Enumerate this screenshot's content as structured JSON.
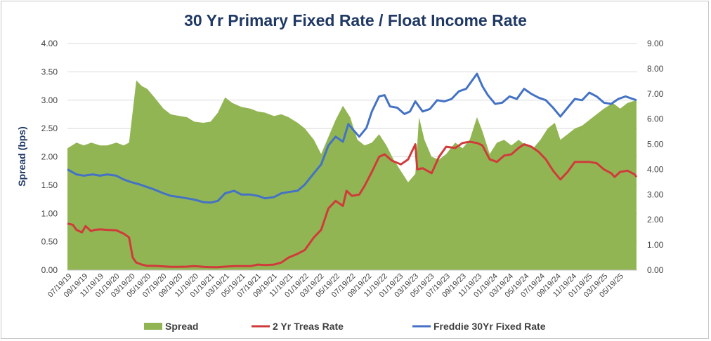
{
  "chart_data": {
    "type": "area",
    "title": "30 Yr Primary Fixed Rate / Float Income Rate",
    "ylabel": "Spread (bps)",
    "ylabel_right": "",
    "ylim": [
      0,
      4
    ],
    "ylim_right": [
      0,
      9
    ],
    "y_ticks": [
      "0.00",
      "0.50",
      "1.00",
      "1.50",
      "2.00",
      "2.50",
      "3.00",
      "3.50",
      "4.00"
    ],
    "y_ticks_right": [
      "0.00",
      "1.00",
      "2.00",
      "3.00",
      "4.00",
      "5.00",
      "6.00",
      "7.00",
      "8.00",
      "9.00"
    ],
    "x_range": [
      "2019-07-01",
      "2025-07-10"
    ],
    "x_ticks": [
      "07/19/19",
      "09/19/19",
      "11/19/19",
      "01/19/20",
      "03/19/20",
      "05/19/20",
      "07/19/20",
      "09/19/20",
      "11/19/20",
      "01/19/21",
      "03/19/21",
      "05/19/21",
      "07/19/21",
      "09/19/21",
      "11/19/21",
      "01/19/22",
      "03/19/22",
      "05/19/22",
      "07/19/22",
      "09/19/22",
      "11/19/22",
      "01/19/23",
      "03/19/23",
      "05/19/23",
      "07/19/23",
      "09/19/23",
      "11/19/23",
      "01/19/24",
      "03/19/24",
      "05/19/24",
      "07/19/24",
      "09/19/24",
      "11/19/24",
      "01/19/25",
      "03/19/25",
      "05/19/25"
    ],
    "grid": true,
    "legend_position": "bottom",
    "series": [
      {
        "name": "Spread",
        "type": "area",
        "axis": "left",
        "color": "#92b553",
        "points": [
          [
            "2019-07-01",
            2.15
          ],
          [
            "2019-08-05",
            2.25
          ],
          [
            "2019-09-02",
            2.2
          ],
          [
            "2019-10-01",
            2.25
          ],
          [
            "2019-11-04",
            2.2
          ],
          [
            "2019-12-02",
            2.2
          ],
          [
            "2020-01-06",
            2.25
          ],
          [
            "2020-02-03",
            2.2
          ],
          [
            "2020-02-24",
            2.25
          ],
          [
            "2020-03-09",
            2.8
          ],
          [
            "2020-03-23",
            3.35
          ],
          [
            "2020-04-13",
            3.25
          ],
          [
            "2020-05-04",
            3.2
          ],
          [
            "2020-06-01",
            3.05
          ],
          [
            "2020-07-06",
            2.85
          ],
          [
            "2020-08-03",
            2.75
          ],
          [
            "2020-09-07",
            2.72
          ],
          [
            "2020-10-05",
            2.7
          ],
          [
            "2020-11-02",
            2.62
          ],
          [
            "2020-12-07",
            2.6
          ],
          [
            "2021-01-04",
            2.62
          ],
          [
            "2021-02-01",
            2.78
          ],
          [
            "2021-03-01",
            3.05
          ],
          [
            "2021-03-29",
            2.95
          ],
          [
            "2021-05-03",
            2.88
          ],
          [
            "2021-06-07",
            2.85
          ],
          [
            "2021-07-05",
            2.8
          ],
          [
            "2021-08-02",
            2.78
          ],
          [
            "2021-09-06",
            2.72
          ],
          [
            "2021-10-04",
            2.75
          ],
          [
            "2021-11-01",
            2.7
          ],
          [
            "2021-12-06",
            2.6
          ],
          [
            "2022-01-03",
            2.5
          ],
          [
            "2022-02-07",
            2.3
          ],
          [
            "2022-03-07",
            2.05
          ],
          [
            "2022-04-04",
            2.35
          ],
          [
            "2022-05-02",
            2.65
          ],
          [
            "2022-05-30",
            2.9
          ],
          [
            "2022-06-27",
            2.7
          ],
          [
            "2022-07-25",
            2.3
          ],
          [
            "2022-08-22",
            2.2
          ],
          [
            "2022-09-19",
            2.25
          ],
          [
            "2022-10-17",
            2.4
          ],
          [
            "2022-11-14",
            2.2
          ],
          [
            "2022-12-12",
            1.95
          ],
          [
            "2023-01-09",
            1.75
          ],
          [
            "2023-02-06",
            1.55
          ],
          [
            "2023-03-06",
            1.7
          ],
          [
            "2023-03-20",
            2.7
          ],
          [
            "2023-04-10",
            2.3
          ],
          [
            "2023-05-08",
            2.0
          ],
          [
            "2023-06-05",
            1.95
          ],
          [
            "2023-07-03",
            2.05
          ],
          [
            "2023-08-07",
            2.25
          ],
          [
            "2023-09-04",
            2.15
          ],
          [
            "2023-10-02",
            2.3
          ],
          [
            "2023-10-30",
            2.7
          ],
          [
            "2023-11-20",
            2.45
          ],
          [
            "2023-12-18",
            2.05
          ],
          [
            "2024-01-15",
            2.25
          ],
          [
            "2024-02-12",
            2.3
          ],
          [
            "2024-03-11",
            2.2
          ],
          [
            "2024-04-08",
            2.3
          ],
          [
            "2024-05-06",
            2.2
          ],
          [
            "2024-06-03",
            2.15
          ],
          [
            "2024-07-01",
            2.3
          ],
          [
            "2024-07-29",
            2.5
          ],
          [
            "2024-08-26",
            2.6
          ],
          [
            "2024-09-16",
            2.3
          ],
          [
            "2024-10-14",
            2.4
          ],
          [
            "2024-11-11",
            2.5
          ],
          [
            "2024-12-09",
            2.55
          ],
          [
            "2025-01-06",
            2.65
          ],
          [
            "2025-02-03",
            2.75
          ],
          [
            "2025-03-03",
            2.85
          ],
          [
            "2025-04-07",
            2.95
          ],
          [
            "2025-05-05",
            2.85
          ],
          [
            "2025-06-02",
            2.95
          ],
          [
            "2025-07-07",
            3.0
          ]
        ]
      },
      {
        "name": "2 Yr Treas Rate",
        "type": "line",
        "axis": "right",
        "color": "#cf3b3b",
        "points": [
          [
            "2019-07-01",
            1.85
          ],
          [
            "2019-07-22",
            1.8
          ],
          [
            "2019-08-05",
            1.6
          ],
          [
            "2019-08-26",
            1.5
          ],
          [
            "2019-09-09",
            1.75
          ],
          [
            "2019-09-30",
            1.55
          ],
          [
            "2019-10-14",
            1.6
          ],
          [
            "2019-11-04",
            1.62
          ],
          [
            "2019-12-02",
            1.6
          ],
          [
            "2020-01-06",
            1.58
          ],
          [
            "2020-02-03",
            1.45
          ],
          [
            "2020-02-24",
            1.3
          ],
          [
            "2020-03-09",
            0.5
          ],
          [
            "2020-03-23",
            0.3
          ],
          [
            "2020-04-13",
            0.22
          ],
          [
            "2020-05-04",
            0.17
          ],
          [
            "2020-06-01",
            0.17
          ],
          [
            "2020-07-06",
            0.15
          ],
          [
            "2020-08-03",
            0.13
          ],
          [
            "2020-09-07",
            0.13
          ],
          [
            "2020-10-05",
            0.14
          ],
          [
            "2020-11-02",
            0.16
          ],
          [
            "2020-12-07",
            0.13
          ],
          [
            "2021-01-04",
            0.12
          ],
          [
            "2021-02-01",
            0.12
          ],
          [
            "2021-03-01",
            0.14
          ],
          [
            "2021-04-05",
            0.16
          ],
          [
            "2021-05-03",
            0.16
          ],
          [
            "2021-06-07",
            0.16
          ],
          [
            "2021-07-05",
            0.22
          ],
          [
            "2021-08-02",
            0.2
          ],
          [
            "2021-09-06",
            0.22
          ],
          [
            "2021-10-04",
            0.3
          ],
          [
            "2021-11-01",
            0.5
          ],
          [
            "2021-12-06",
            0.65
          ],
          [
            "2022-01-03",
            0.8
          ],
          [
            "2022-02-07",
            1.3
          ],
          [
            "2022-03-07",
            1.6
          ],
          [
            "2022-04-04",
            2.45
          ],
          [
            "2022-05-02",
            2.75
          ],
          [
            "2022-05-30",
            2.55
          ],
          [
            "2022-06-13",
            3.15
          ],
          [
            "2022-07-04",
            2.95
          ],
          [
            "2022-08-01",
            3.0
          ],
          [
            "2022-08-22",
            3.35
          ],
          [
            "2022-09-19",
            3.9
          ],
          [
            "2022-10-17",
            4.5
          ],
          [
            "2022-11-07",
            4.6
          ],
          [
            "2022-12-05",
            4.35
          ],
          [
            "2023-01-09",
            4.2
          ],
          [
            "2023-02-06",
            4.4
          ],
          [
            "2023-03-06",
            5.0
          ],
          [
            "2023-03-13",
            4.0
          ],
          [
            "2023-04-03",
            4.05
          ],
          [
            "2023-05-08",
            3.85
          ],
          [
            "2023-06-05",
            4.5
          ],
          [
            "2023-07-03",
            4.9
          ],
          [
            "2023-08-07",
            4.85
          ],
          [
            "2023-09-04",
            5.05
          ],
          [
            "2023-10-02",
            5.1
          ],
          [
            "2023-10-30",
            5.05
          ],
          [
            "2023-11-20",
            4.95
          ],
          [
            "2023-12-18",
            4.4
          ],
          [
            "2024-01-15",
            4.3
          ],
          [
            "2024-02-12",
            4.55
          ],
          [
            "2024-03-11",
            4.6
          ],
          [
            "2024-04-08",
            4.85
          ],
          [
            "2024-04-29",
            5.0
          ],
          [
            "2024-05-27",
            4.9
          ],
          [
            "2024-06-24",
            4.7
          ],
          [
            "2024-07-22",
            4.4
          ],
          [
            "2024-08-19",
            3.95
          ],
          [
            "2024-09-16",
            3.6
          ],
          [
            "2024-10-14",
            3.9
          ],
          [
            "2024-11-11",
            4.3
          ],
          [
            "2024-12-09",
            4.3
          ],
          [
            "2025-01-06",
            4.3
          ],
          [
            "2025-02-03",
            4.25
          ],
          [
            "2025-03-03",
            4.0
          ],
          [
            "2025-03-31",
            3.85
          ],
          [
            "2025-04-14",
            3.7
          ],
          [
            "2025-05-05",
            3.9
          ],
          [
            "2025-06-02",
            3.95
          ],
          [
            "2025-06-30",
            3.8
          ],
          [
            "2025-07-07",
            3.7
          ]
        ]
      },
      {
        "name": "Freddie 30Yr Fixed Rate",
        "type": "line",
        "axis": "right",
        "color": "#4472c4",
        "points": [
          [
            "2019-07-01",
            4.0
          ],
          [
            "2019-08-05",
            3.8
          ],
          [
            "2019-09-02",
            3.75
          ],
          [
            "2019-10-07",
            3.8
          ],
          [
            "2019-11-04",
            3.75
          ],
          [
            "2019-12-02",
            3.8
          ],
          [
            "2020-01-06",
            3.75
          ],
          [
            "2020-02-03",
            3.6
          ],
          [
            "2020-03-02",
            3.5
          ],
          [
            "2020-04-06",
            3.4
          ],
          [
            "2020-05-04",
            3.3
          ],
          [
            "2020-06-01",
            3.2
          ],
          [
            "2020-07-06",
            3.05
          ],
          [
            "2020-08-03",
            2.95
          ],
          [
            "2020-09-07",
            2.9
          ],
          [
            "2020-10-05",
            2.85
          ],
          [
            "2020-11-02",
            2.8
          ],
          [
            "2020-12-07",
            2.7
          ],
          [
            "2021-01-04",
            2.68
          ],
          [
            "2021-02-01",
            2.75
          ],
          [
            "2021-03-01",
            3.05
          ],
          [
            "2021-04-05",
            3.15
          ],
          [
            "2021-05-03",
            3.0
          ],
          [
            "2021-06-07",
            3.0
          ],
          [
            "2021-07-05",
            2.95
          ],
          [
            "2021-08-02",
            2.85
          ],
          [
            "2021-09-06",
            2.9
          ],
          [
            "2021-10-04",
            3.05
          ],
          [
            "2021-11-01",
            3.1
          ],
          [
            "2021-12-06",
            3.15
          ],
          [
            "2022-01-03",
            3.4
          ],
          [
            "2022-02-07",
            3.85
          ],
          [
            "2022-03-07",
            4.2
          ],
          [
            "2022-04-04",
            4.95
          ],
          [
            "2022-05-02",
            5.3
          ],
          [
            "2022-05-30",
            5.1
          ],
          [
            "2022-06-20",
            5.8
          ],
          [
            "2022-07-11",
            5.55
          ],
          [
            "2022-08-01",
            5.3
          ],
          [
            "2022-08-29",
            5.65
          ],
          [
            "2022-09-19",
            6.3
          ],
          [
            "2022-10-17",
            6.9
          ],
          [
            "2022-11-07",
            6.95
          ],
          [
            "2022-11-28",
            6.5
          ],
          [
            "2022-12-26",
            6.45
          ],
          [
            "2023-01-23",
            6.2
          ],
          [
            "2023-02-13",
            6.3
          ],
          [
            "2023-03-06",
            6.7
          ],
          [
            "2023-04-03",
            6.3
          ],
          [
            "2023-05-01",
            6.4
          ],
          [
            "2023-05-29",
            6.75
          ],
          [
            "2023-06-26",
            6.7
          ],
          [
            "2023-07-24",
            6.8
          ],
          [
            "2023-08-21",
            7.1
          ],
          [
            "2023-09-18",
            7.2
          ],
          [
            "2023-10-16",
            7.6
          ],
          [
            "2023-10-30",
            7.8
          ],
          [
            "2023-11-20",
            7.3
          ],
          [
            "2023-12-11",
            6.95
          ],
          [
            "2024-01-08",
            6.6
          ],
          [
            "2024-02-05",
            6.65
          ],
          [
            "2024-03-04",
            6.9
          ],
          [
            "2024-04-01",
            6.8
          ],
          [
            "2024-04-29",
            7.2
          ],
          [
            "2024-05-27",
            7.0
          ],
          [
            "2024-06-24",
            6.85
          ],
          [
            "2024-07-22",
            6.75
          ],
          [
            "2024-08-19",
            6.45
          ],
          [
            "2024-09-16",
            6.1
          ],
          [
            "2024-10-14",
            6.45
          ],
          [
            "2024-11-11",
            6.8
          ],
          [
            "2024-12-09",
            6.75
          ],
          [
            "2025-01-06",
            7.05
          ],
          [
            "2025-02-03",
            6.9
          ],
          [
            "2025-03-03",
            6.65
          ],
          [
            "2025-03-31",
            6.6
          ],
          [
            "2025-04-28",
            6.8
          ],
          [
            "2025-05-26",
            6.9
          ],
          [
            "2025-06-23",
            6.8
          ],
          [
            "2025-07-07",
            6.75
          ]
        ]
      }
    ]
  }
}
